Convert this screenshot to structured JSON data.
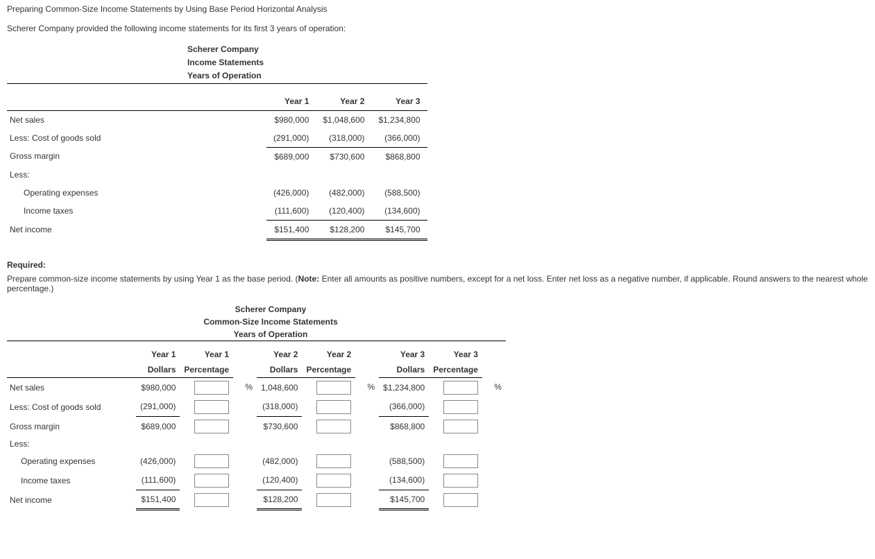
{
  "page_title": "Preparing Common-Size Income Statements by Using Base Period Horizontal Analysis",
  "intro": "Scherer Company provided the following income statements for its first 3 years of operation:",
  "company_header": {
    "company": "Scherer Company",
    "statement": "Income Statements",
    "period": "Years of Operation"
  },
  "income_table": {
    "col_headers": [
      "Year 1",
      "Year 2",
      "Year 3"
    ],
    "rows": [
      {
        "label": "Net sales",
        "y1": "$980,000",
        "y2": "$1,048,600",
        "y3": "$1,234,800"
      },
      {
        "label": "Less: Cost of goods sold",
        "y1": "(291,000)",
        "y2": "(318,000)",
        "y3": "(366,000)"
      },
      {
        "label": "Gross margin",
        "rule": true,
        "y1": "$689,000",
        "y2": "$730,600",
        "y3": "$868,800"
      },
      {
        "label": "Less:"
      },
      {
        "label": "Operating expenses",
        "indent": true,
        "y1": "(426,000)",
        "y2": "(482,000)",
        "y3": "(588,500)"
      },
      {
        "label": "Income taxes",
        "indent": true,
        "y1": "(111,600)",
        "y2": "(120,400)",
        "y3": "(134,600)"
      },
      {
        "label": "Net income",
        "dbl": true,
        "y1": "$151,400",
        "y2": "$128,200",
        "y3": "$145,700"
      }
    ]
  },
  "required_label": "Required:",
  "required_text_prefix": "Prepare common-size income statements by using Year 1 as the base period. (",
  "required_note_label": "Note:",
  "required_text_suffix": " Enter all amounts as positive numbers, except for a net loss. Enter net loss as a negative number, if applicable. Round answers to the nearest whole percentage.)",
  "cs_header": {
    "company": "Scherer Company",
    "statement": "Common-Size Income Statements",
    "period": "Years of Operation"
  },
  "cs_table": {
    "top_headers": [
      "Year 1",
      "Year 1",
      "Year 2",
      "Year 2",
      "Year 3",
      "Year 3"
    ],
    "sub_headers": [
      "Dollars",
      "Percentage",
      "Dollars",
      "Percentage",
      "Dollars",
      "Percentage"
    ],
    "pct_symbol": "%",
    "rows": [
      {
        "label": "Net sales",
        "first": true,
        "y1": "$980,000",
        "y2": "1,048,600",
        "y3": "$1,234,800"
      },
      {
        "label": "Less: Cost of goods sold",
        "y1": "(291,000)",
        "y2": "(318,000)",
        "y3": "(366,000)"
      },
      {
        "label": "Gross margin",
        "rule": true,
        "y1": "$689,000",
        "y2": "$730,600",
        "y3": "$868,800"
      },
      {
        "label": "Less:"
      },
      {
        "label": "Operating expenses",
        "indent": true,
        "y1": "(426,000)",
        "y2": "(482,000)",
        "y3": "(588,500)"
      },
      {
        "label": "Income taxes",
        "indent": true,
        "y1": "(111,600)",
        "y2": "(120,400)",
        "y3": "(134,600)"
      },
      {
        "label": "Net income",
        "dbl": true,
        "y1": "$151,400",
        "y2": "$128,200",
        "y3": "$145,700"
      }
    ]
  }
}
